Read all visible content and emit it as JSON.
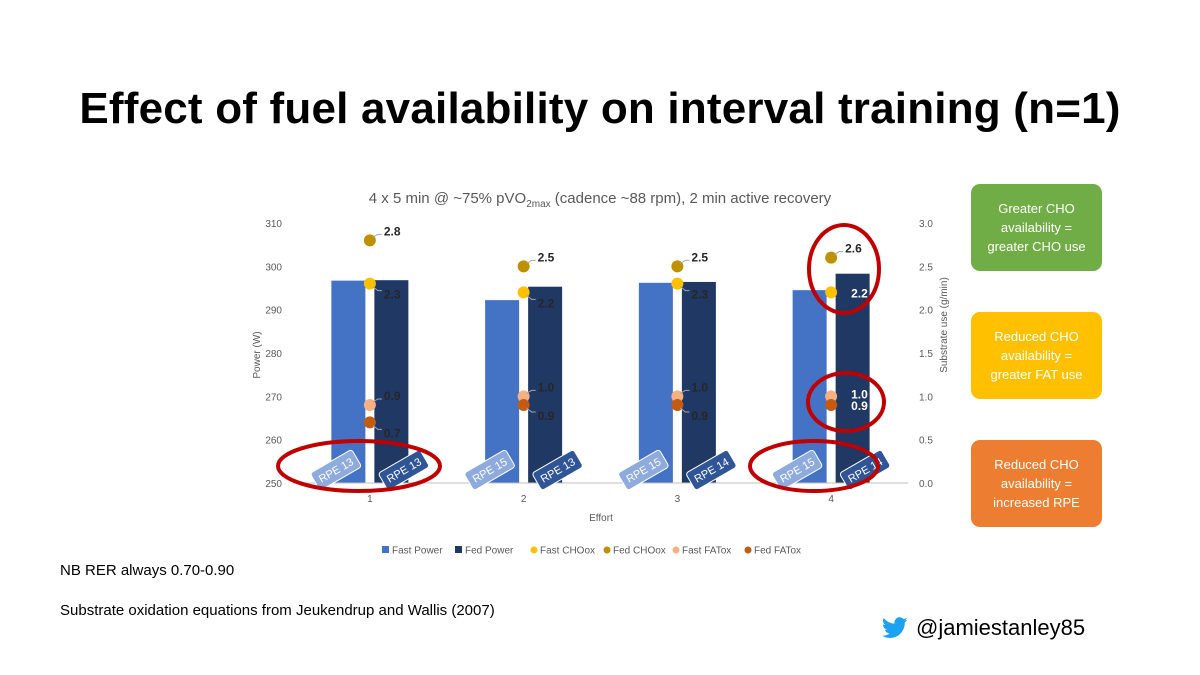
{
  "slide": {
    "title": "Effect of fuel availability on interval training (n=1)",
    "notes": [
      "NB RER always 0.70-0.90",
      "Substrate oxidation equations from Jeukendrup and Wallis (2007)"
    ],
    "twitter_handle": "@jamiestanley85",
    "callouts": [
      {
        "text": "Greater CHO availability = greater CHO use",
        "color": "#70ad47"
      },
      {
        "text": "Reduced CHO availability = greater FAT use",
        "color": "#ffc000"
      },
      {
        "text": "Reduced CHO availability = increased RPE",
        "color": "#ed7d31"
      }
    ]
  },
  "chart_data": {
    "type": "bar",
    "title_prefix": "4 x 5 min @ ~75% pVO",
    "title_sub": "2max",
    "title_suffix": " (cadence ~88 rpm), 2 min active recovery",
    "xlabel": "Effort",
    "ylabel_left": "Power (W)",
    "ylabel_right": "Substrate use (g/min)",
    "categories": [
      "1",
      "2",
      "3",
      "4"
    ],
    "ylim_left": [
      250,
      310
    ],
    "yticks_left": [
      250,
      260,
      270,
      280,
      290,
      300,
      310
    ],
    "ylim_right": [
      0,
      3.0
    ],
    "yticks_right": [
      "0.0",
      "0.5",
      "1.0",
      "1.5",
      "2.0",
      "2.5",
      "3.0"
    ],
    "bar_series": [
      {
        "name": "Fast Power",
        "color": "#4472c4",
        "values": [
          296.7,
          292.2,
          296.2,
          294.5
        ]
      },
      {
        "name": "Fed Power",
        "color": "#203864",
        "values": [
          296.8,
          295.3,
          296.4,
          298.3
        ]
      }
    ],
    "point_series": [
      {
        "name": "Fast CHOox",
        "color": "#ffc000",
        "values": [
          2.3,
          2.2,
          2.3,
          2.2
        ],
        "labels": [
          "2.3",
          "2.2",
          "2.3",
          "2.2"
        ]
      },
      {
        "name": "Fed CHOox",
        "color": "#bf9000",
        "values": [
          2.8,
          2.5,
          2.5,
          2.6
        ],
        "labels": [
          "2.8",
          "2.5",
          "2.5",
          "2.6"
        ]
      },
      {
        "name": "Fast FATox",
        "color": "#f4b183",
        "values": [
          0.9,
          1.0,
          1.0,
          1.0
        ],
        "labels": [
          "0.9",
          "1.0",
          "1.0",
          "1.0"
        ]
      },
      {
        "name": "Fed FATox",
        "color": "#c55a11",
        "values": [
          0.7,
          0.9,
          0.9,
          0.9
        ],
        "labels": [
          "0.7",
          "0.9",
          "0.9",
          "0.9"
        ]
      }
    ],
    "rpe": {
      "fast": [
        "RPE 13",
        "RPE 15",
        "RPE 15",
        "RPE 15"
      ],
      "fed": [
        "RPE 13",
        "RPE 13",
        "RPE 14",
        "RPE 14"
      ],
      "fast_color": "#8faadc",
      "fed_color": "#2f5597"
    },
    "highlight_color": "#c00000",
    "grid": false,
    "legend_position": "bottom"
  }
}
